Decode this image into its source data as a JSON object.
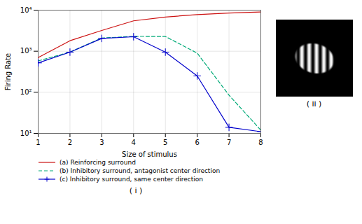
{
  "chart_data": {
    "type": "line",
    "x": [
      1,
      2,
      3,
      4,
      5,
      6,
      7,
      8
    ],
    "series": [
      {
        "name": "(a) Reinforcing surround",
        "color": "#cc1111",
        "line_style": "solid",
        "values": [
          700,
          1800,
          3200,
          5500,
          6800,
          7800,
          8500,
          9000
        ]
      },
      {
        "name": "(b) Inhibitory surround, antagonist center direction",
        "color": "#00aa77",
        "line_style": "dashed",
        "values": [
          580,
          950,
          2100,
          2300,
          2280,
          900,
          85,
          12
        ]
      },
      {
        "name": "(c) Inhibitory surround, same center direction",
        "color": "#0000cc",
        "line_style": "solid",
        "marker": "plus",
        "values": [
          520,
          950,
          2050,
          2250,
          950,
          250,
          14,
          11
        ]
      }
    ],
    "x_label": "Size of stimulus",
    "y_label": "Firing Rate",
    "xlim": [
      1,
      8
    ],
    "xticks": [
      1,
      2,
      3,
      4,
      5,
      6,
      7,
      8
    ],
    "ylim": [
      10,
      10000
    ],
    "yticks": [
      {
        "value": 10,
        "label": "10¹"
      },
      {
        "value": 100,
        "label": "10²"
      },
      {
        "value": 1000,
        "label": "10³"
      },
      {
        "value": 10000,
        "label": "10⁴"
      }
    ],
    "log": "y",
    "grid": true,
    "legend": "bottom",
    "annotations": [
      "( i )",
      "( ii )"
    ]
  }
}
